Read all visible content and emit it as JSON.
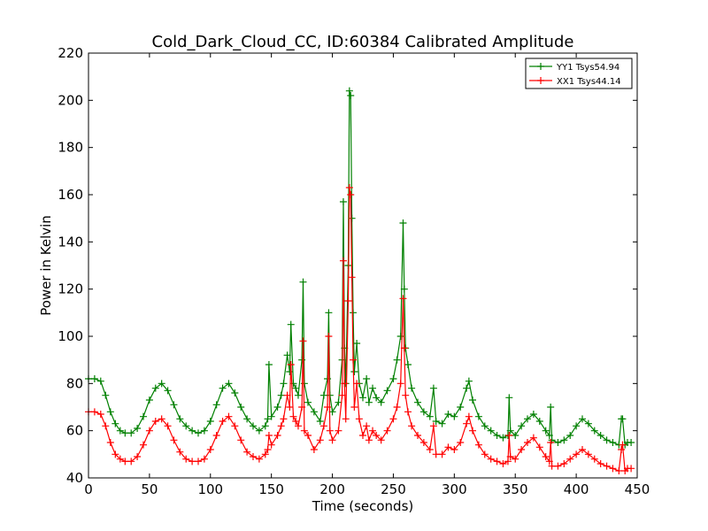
{
  "chart_data": {
    "type": "line",
    "title": "Cold_Dark_Cloud_CC, ID:60384 Calibrated Amplitude",
    "xlabel": "Time (seconds)",
    "ylabel": "Power in Kelvin",
    "xlim": [
      0,
      450
    ],
    "ylim": [
      40,
      220
    ],
    "xticks": [
      0,
      50,
      100,
      150,
      200,
      250,
      300,
      350,
      400,
      450
    ],
    "yticks": [
      40,
      60,
      80,
      100,
      120,
      140,
      160,
      180,
      200,
      220
    ],
    "grid": false,
    "legend_position": "top-right",
    "marker": "+",
    "series": [
      {
        "name": "YY1 Tsys54.94",
        "color": "#008000",
        "x": [
          0,
          5,
          10,
          14,
          18,
          22,
          26,
          30,
          35,
          40,
          45,
          50,
          55,
          60,
          65,
          70,
          75,
          80,
          85,
          90,
          95,
          100,
          105,
          110,
          115,
          120,
          125,
          130,
          135,
          140,
          145,
          147,
          148,
          150,
          155,
          158,
          160,
          163,
          165,
          166,
          168,
          170,
          172,
          175,
          176,
          177,
          180,
          185,
          190,
          193,
          196,
          197,
          198,
          200,
          205,
          208,
          209,
          210,
          211,
          213,
          214,
          215,
          216,
          217,
          218,
          220,
          222,
          225,
          228,
          230,
          233,
          236,
          240,
          245,
          250,
          253,
          256,
          258,
          259,
          260,
          262,
          265,
          270,
          275,
          280,
          283,
          285,
          290,
          295,
          300,
          305,
          310,
          312,
          315,
          320,
          325,
          330,
          335,
          340,
          344,
          345,
          346,
          350,
          355,
          360,
          365,
          370,
          375,
          378,
          379,
          380,
          385,
          390,
          395,
          400,
          405,
          410,
          415,
          420,
          425,
          430,
          435,
          437,
          438,
          440,
          442,
          445
        ],
        "values": [
          82,
          82,
          81,
          75,
          68,
          63,
          60,
          59,
          59,
          61,
          66,
          73,
          78,
          80,
          77,
          71,
          65,
          62,
          60,
          59,
          60,
          64,
          71,
          78,
          80,
          76,
          70,
          65,
          62,
          60,
          62,
          65,
          88,
          66,
          70,
          75,
          80,
          92,
          85,
          105,
          80,
          78,
          75,
          90,
          123,
          80,
          72,
          68,
          64,
          75,
          82,
          110,
          75,
          68,
          72,
          90,
          157,
          95,
          80,
          130,
          204,
          202,
          150,
          110,
          85,
          97,
          80,
          74,
          82,
          72,
          78,
          74,
          72,
          77,
          82,
          90,
          100,
          148,
          120,
          95,
          88,
          78,
          72,
          68,
          66,
          78,
          64,
          63,
          67,
          66,
          70,
          78,
          81,
          73,
          66,
          62,
          60,
          58,
          57,
          58,
          74,
          60,
          58,
          62,
          65,
          67,
          64,
          60,
          58,
          70,
          56,
          55,
          56,
          58,
          62,
          65,
          63,
          60,
          58,
          56,
          55,
          54,
          65,
          65,
          54,
          55,
          55
        ]
      },
      {
        "name": "XX1 Tsys44.14",
        "color": "#ff0000",
        "x": [
          0,
          5,
          10,
          14,
          18,
          22,
          26,
          30,
          35,
          40,
          45,
          50,
          55,
          60,
          65,
          70,
          75,
          80,
          85,
          90,
          95,
          100,
          105,
          110,
          115,
          120,
          125,
          130,
          135,
          140,
          145,
          147,
          148,
          150,
          155,
          158,
          160,
          163,
          165,
          166,
          168,
          170,
          172,
          175,
          176,
          177,
          180,
          185,
          190,
          193,
          196,
          197,
          198,
          200,
          205,
          208,
          209,
          210,
          211,
          213,
          214,
          215,
          216,
          217,
          218,
          220,
          222,
          225,
          228,
          230,
          233,
          236,
          240,
          245,
          250,
          253,
          256,
          258,
          259,
          260,
          262,
          265,
          270,
          275,
          280,
          283,
          285,
          290,
          295,
          300,
          305,
          310,
          312,
          315,
          320,
          325,
          330,
          335,
          340,
          344,
          345,
          346,
          350,
          355,
          360,
          365,
          370,
          375,
          378,
          379,
          380,
          385,
          390,
          395,
          400,
          405,
          410,
          415,
          420,
          425,
          430,
          435,
          437,
          438,
          440,
          442,
          445
        ],
        "values": [
          68,
          68,
          67,
          62,
          55,
          50,
          48,
          47,
          47,
          49,
          54,
          60,
          64,
          65,
          62,
          56,
          51,
          48,
          47,
          47,
          48,
          52,
          58,
          64,
          66,
          62,
          56,
          51,
          49,
          48,
          50,
          52,
          58,
          54,
          58,
          62,
          65,
          75,
          70,
          88,
          66,
          64,
          62,
          70,
          98,
          60,
          58,
          52,
          56,
          62,
          70,
          100,
          60,
          56,
          60,
          75,
          132,
          80,
          65,
          115,
          163,
          160,
          125,
          90,
          70,
          80,
          65,
          58,
          62,
          56,
          60,
          58,
          56,
          60,
          65,
          70,
          80,
          116,
          95,
          75,
          68,
          62,
          58,
          55,
          52,
          62,
          50,
          50,
          53,
          52,
          55,
          63,
          66,
          60,
          54,
          50,
          48,
          47,
          46,
          47,
          58,
          49,
          48,
          52,
          55,
          57,
          53,
          49,
          47,
          55,
          45,
          45,
          46,
          48,
          50,
          52,
          50,
          48,
          46,
          45,
          44,
          43,
          52,
          54,
          43,
          44,
          44
        ]
      }
    ]
  }
}
